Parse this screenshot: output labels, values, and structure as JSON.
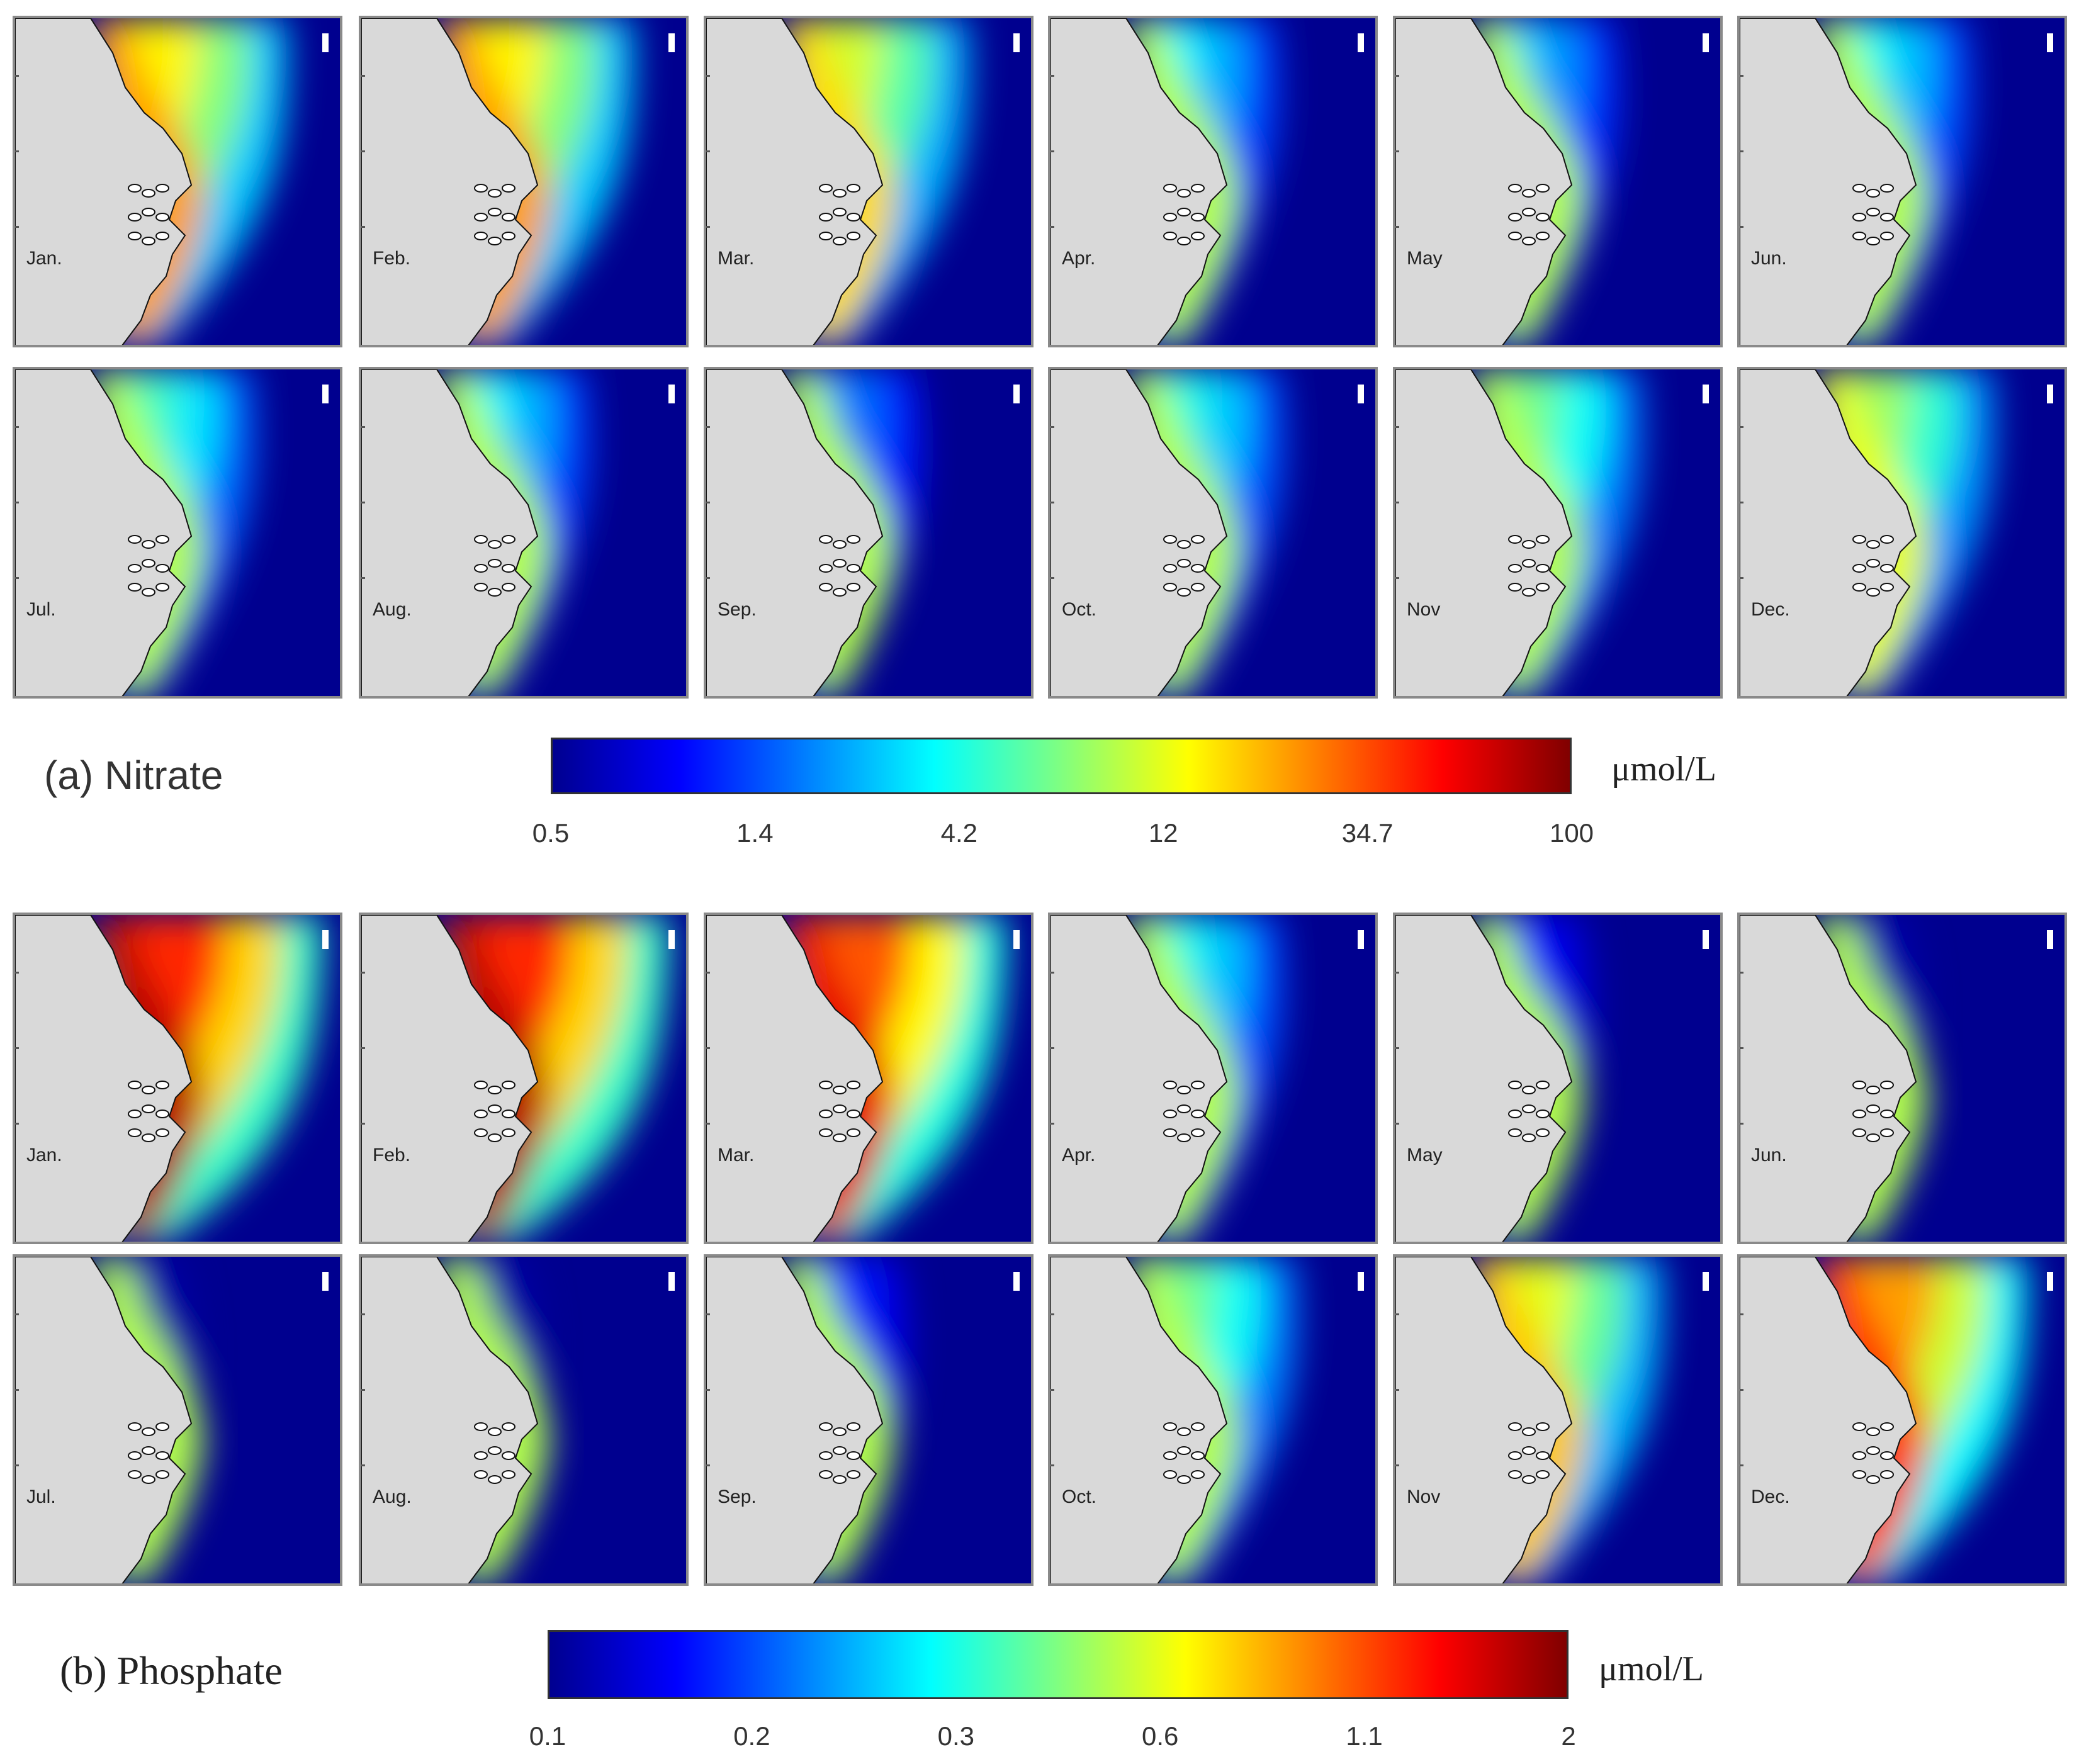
{
  "figure": {
    "nitrate": {
      "title": "(a) Nitrate",
      "unit": "μmol/L",
      "months": [
        "Jan.",
        "Feb.",
        "Mar.",
        "Apr.",
        "May",
        "Jun.",
        "Jul.",
        "Aug.",
        "Sep.",
        "Oct.",
        "Nov",
        "Dec."
      ],
      "colorbar_ticks": [
        "0.5",
        "1.4",
        "4.2",
        "12",
        "34.7",
        "100"
      ],
      "plume_intensity": [
        0.72,
        0.72,
        0.66,
        0.42,
        0.38,
        0.44,
        0.5,
        0.42,
        0.32,
        0.46,
        0.55,
        0.6
      ]
    },
    "phosphate": {
      "title": "(b) Phosphate",
      "unit": "μmol/L",
      "months": [
        "Jan.",
        "Feb.",
        "Mar.",
        "Apr.",
        "May",
        "Jun.",
        "Jul.",
        "Aug.",
        "Sep.",
        "Oct.",
        "Nov",
        "Dec."
      ],
      "colorbar_ticks": [
        "0.1",
        "0.2",
        "0.3",
        "0.6",
        "1.1",
        "2"
      ],
      "plume_intensity": [
        0.95,
        0.95,
        0.9,
        0.45,
        0.18,
        0.06,
        0.05,
        0.05,
        0.22,
        0.55,
        0.68,
        0.82
      ]
    },
    "colormap": [
      "#00008f",
      "#0000ff",
      "#0080ff",
      "#00ffff",
      "#80ff80",
      "#ffff00",
      "#ff8000",
      "#ff0000",
      "#800000"
    ],
    "land_color": "#d9d9d9"
  }
}
